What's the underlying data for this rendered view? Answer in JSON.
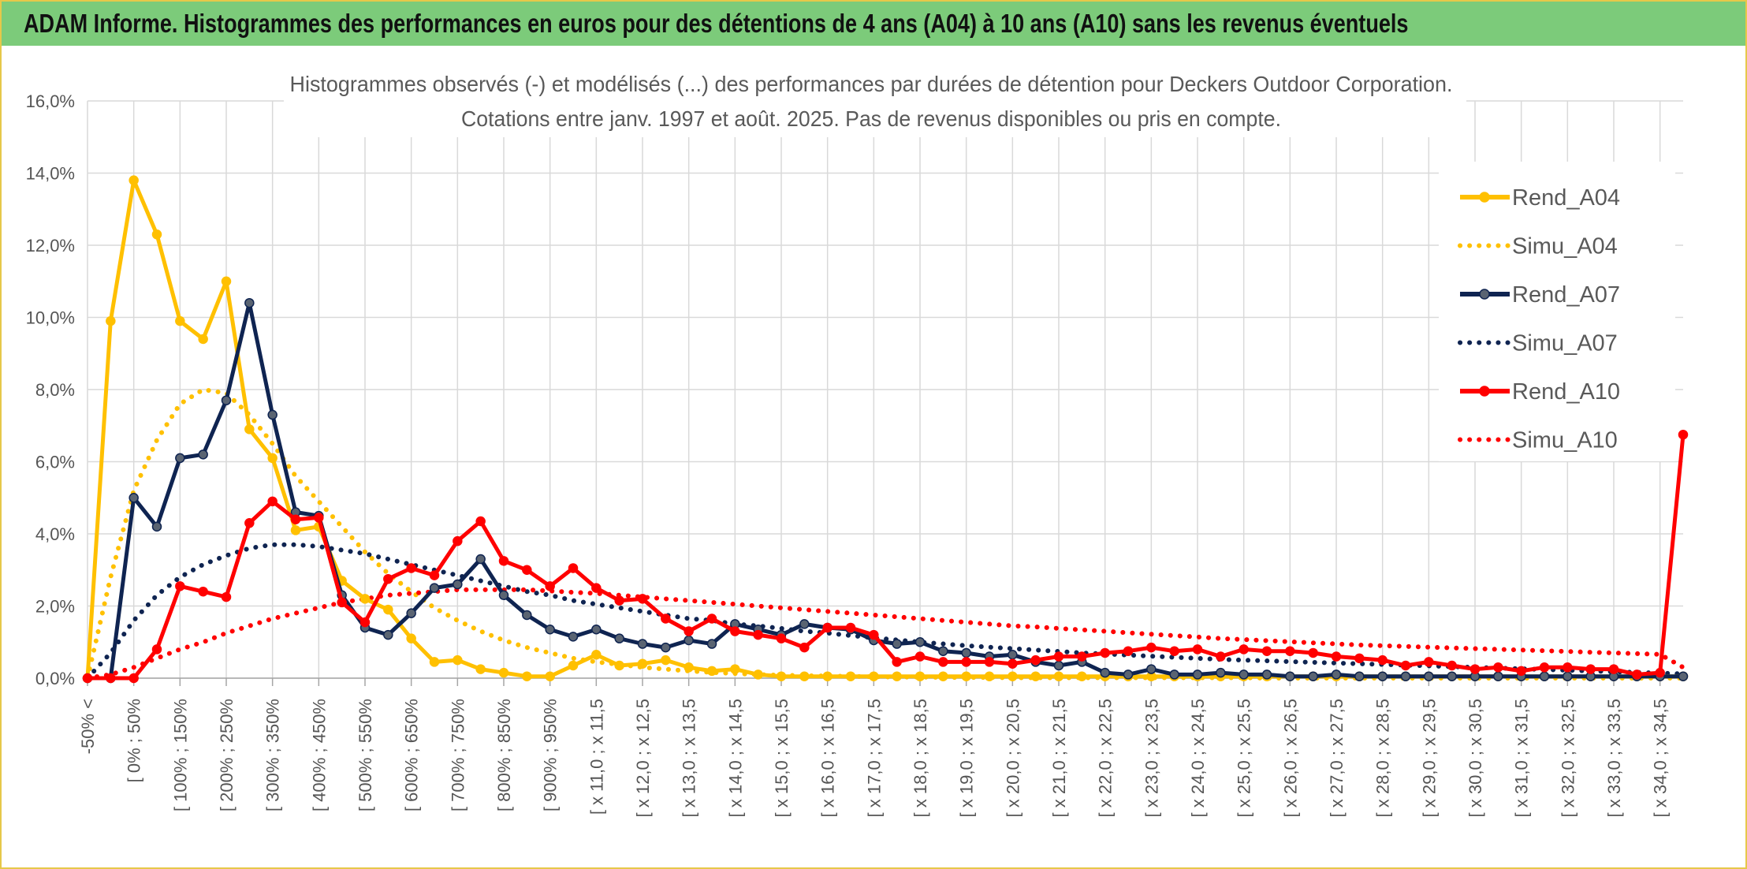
{
  "header": {
    "title": "ADAM Informe. Histogrammes des performances en euros pour des détentions de 4 ans (A04) à 10 ans (A10) sans les revenus éventuels"
  },
  "colors": {
    "header_bg": "#7ccb7a",
    "frame": "#e6c84a",
    "A04": "#ffc000",
    "A07": "#0f2451",
    "A10": "#ff0000",
    "grid": "#d9d9d9"
  },
  "chart_data": {
    "type": "line",
    "title": "Histogrammes observés (-) et modélisés (...) des performances par durées de détention pour Deckers Outdoor Corporation.",
    "subtitle": "Cotations entre janv. 1997 et août. 2025. Pas de revenus disponibles ou pris en compte.",
    "ylim": [
      0,
      16
    ],
    "y_ticks": [
      "0,0%",
      "2,0%",
      "4,0%",
      "6,0%",
      "8,0%",
      "10,0%",
      "12,0%",
      "14,0%",
      "16,0%"
    ],
    "y_unit": "%",
    "legend_position": "right",
    "x_labels": [
      "-50% <",
      "[ 0% ; 50%",
      "[ 100% ; 150%",
      "[ 200% ; 250%",
      "[ 300% ; 350%",
      "[ 400% ; 450%",
      "[ 500% ; 550%",
      "[ 600% ; 650%",
      "[ 700% ; 750%",
      "[ 800% ; 850%",
      "[ 900% ; 950%",
      "[ x 11,0 ; x 11,5",
      "[ x 12,0 ; x 12,5",
      "[ x 13,0 ; x 13,5",
      "[ x 14,0 ; x 14,5",
      "[ x 15,0 ; x 15,5",
      "[ x 16,0 ; x 16,5",
      "[ x 17,0 ; x 17,5",
      "[ x 18,0 ; x 18,5",
      "[ x 19,0 ; x 19,5",
      "[ x 20,0 ; x 20,5",
      "[ x 21,0 ; x 21,5",
      "[ x 22,0 ; x 22,5",
      "[ x 23,0 ; x 23,5",
      "[ x 24,0 ; x 24,5",
      "[ x 25,0 ; x 25,5",
      "[ x 26,0 ; x 26,5",
      "[ x 27,0 ; x 27,5",
      "[ x 28,0 ; x 28,5",
      "[ x 29,0 ; x 29,5",
      "[ x 30,0 ; x 30,5",
      "[ x 31,0 ; x 31,5",
      "[ x 32,0 ; x 32,5",
      "[ x 33,0 ; x 33,5",
      "[ x 34,0 ; x 34,5"
    ],
    "series": [
      {
        "name": "Rend_A04",
        "style": "solid",
        "color": "#ffc000",
        "marker": "circle",
        "values": [
          0.0,
          9.9,
          13.8,
          12.3,
          9.9,
          9.4,
          11.0,
          6.9,
          6.1,
          4.1,
          4.2,
          2.7,
          2.2,
          1.9,
          1.1,
          0.45,
          0.5,
          0.25,
          0.15,
          0.05,
          0.05,
          0.35,
          0.65,
          0.35,
          0.4,
          0.5,
          0.3,
          0.2,
          0.25,
          0.1,
          0.05,
          0.05,
          0.05,
          0.05,
          0.05,
          0.05,
          0.05,
          0.05,
          0.05,
          0.05,
          0.05,
          0.05,
          0.05,
          0.05,
          0.05,
          0.05,
          0.05,
          0.05,
          0.05,
          0.05,
          0.05,
          0.05,
          0.05,
          0.05,
          0.05,
          0.05,
          0.05,
          0.05,
          0.05,
          0.05,
          0.05,
          0.05,
          0.05,
          0.05,
          0.05,
          0.05,
          0.05,
          0.05,
          0.05,
          0.05
        ]
      },
      {
        "name": "Simu_A04",
        "style": "dotted",
        "color": "#ffc000",
        "values": [
          0.0,
          2.8,
          5.2,
          6.6,
          7.6,
          8.0,
          7.9,
          7.3,
          6.5,
          5.6,
          4.9,
          4.2,
          3.5,
          2.9,
          2.4,
          1.95,
          1.6,
          1.3,
          1.05,
          0.85,
          0.7,
          0.55,
          0.45,
          0.38,
          0.3,
          0.25,
          0.2,
          0.16,
          0.13,
          0.1,
          0.08,
          0.07,
          0.06,
          0.05,
          0.04,
          0.03,
          0.03,
          0.02,
          0.02,
          0.02,
          0.01,
          0.01,
          0.01,
          0.01,
          0.01,
          0.01,
          0.01,
          0.01,
          0.01,
          0.01,
          0.01,
          0.0,
          0.0,
          0.0,
          0.0,
          0.0,
          0.0,
          0.0,
          0.0,
          0.0,
          0.0,
          0.0,
          0.0,
          0.0,
          0.0,
          0.0,
          0.0,
          0.0,
          0.0,
          0.0
        ]
      },
      {
        "name": "Rend_A07",
        "style": "solid",
        "color": "#0f2451",
        "marker": "circle",
        "values": [
          0.0,
          0.0,
          5.0,
          4.2,
          6.1,
          6.2,
          7.7,
          10.4,
          7.3,
          4.6,
          4.5,
          2.3,
          1.4,
          1.2,
          1.8,
          2.5,
          2.6,
          3.3,
          2.3,
          1.75,
          1.35,
          1.15,
          1.35,
          1.1,
          0.95,
          0.85,
          1.05,
          0.95,
          1.5,
          1.35,
          1.2,
          1.5,
          1.4,
          1.35,
          1.05,
          0.95,
          1.0,
          0.75,
          0.7,
          0.6,
          0.65,
          0.45,
          0.35,
          0.45,
          0.15,
          0.1,
          0.25,
          0.1,
          0.1,
          0.15,
          0.1,
          0.1,
          0.05,
          0.05,
          0.1,
          0.05,
          0.05,
          0.05,
          0.05,
          0.05,
          0.05,
          0.05,
          0.05,
          0.05,
          0.05,
          0.05,
          0.05,
          0.05,
          0.05,
          0.05
        ]
      },
      {
        "name": "Simu_A07",
        "style": "dotted",
        "color": "#0f2451",
        "values": [
          0.0,
          0.7,
          1.6,
          2.3,
          2.8,
          3.15,
          3.4,
          3.6,
          3.7,
          3.7,
          3.65,
          3.55,
          3.45,
          3.3,
          3.15,
          3.0,
          2.85,
          2.7,
          2.55,
          2.4,
          2.3,
          2.15,
          2.05,
          1.95,
          1.85,
          1.75,
          1.65,
          1.6,
          1.5,
          1.45,
          1.38,
          1.3,
          1.25,
          1.18,
          1.12,
          1.06,
          1.0,
          0.95,
          0.9,
          0.86,
          0.82,
          0.78,
          0.74,
          0.7,
          0.67,
          0.64,
          0.61,
          0.58,
          0.55,
          0.52,
          0.5,
          0.48,
          0.46,
          0.44,
          0.42,
          0.4,
          0.38,
          0.36,
          0.34,
          0.32,
          0.3,
          0.28,
          0.26,
          0.24,
          0.22,
          0.2,
          0.18,
          0.16,
          0.14,
          0.12
        ]
      },
      {
        "name": "Rend_A10",
        "style": "solid",
        "color": "#ff0000",
        "marker": "circle",
        "values": [
          0.0,
          0.0,
          0.0,
          0.8,
          2.55,
          2.4,
          2.25,
          4.3,
          4.9,
          4.4,
          4.45,
          2.1,
          1.55,
          2.75,
          3.05,
          2.85,
          3.8,
          4.35,
          3.25,
          3.0,
          2.55,
          3.05,
          2.5,
          2.15,
          2.2,
          1.65,
          1.3,
          1.65,
          1.3,
          1.2,
          1.1,
          0.85,
          1.4,
          1.4,
          1.2,
          0.45,
          0.6,
          0.45,
          0.45,
          0.45,
          0.4,
          0.5,
          0.6,
          0.6,
          0.7,
          0.75,
          0.85,
          0.75,
          0.8,
          0.6,
          0.8,
          0.75,
          0.75,
          0.7,
          0.6,
          0.55,
          0.5,
          0.35,
          0.45,
          0.35,
          0.25,
          0.3,
          0.2,
          0.3,
          0.3,
          0.25,
          0.25,
          0.1,
          0.15,
          6.75
        ]
      },
      {
        "name": "Simu_A10",
        "style": "dotted",
        "color": "#ff0000",
        "values": [
          0.0,
          0.1,
          0.3,
          0.55,
          0.8,
          1.0,
          1.25,
          1.45,
          1.65,
          1.8,
          1.95,
          2.1,
          2.2,
          2.3,
          2.35,
          2.4,
          2.45,
          2.45,
          2.45,
          2.45,
          2.42,
          2.38,
          2.35,
          2.3,
          2.25,
          2.2,
          2.15,
          2.1,
          2.05,
          2.0,
          1.95,
          1.9,
          1.85,
          1.8,
          1.75,
          1.7,
          1.65,
          1.6,
          1.55,
          1.5,
          1.45,
          1.42,
          1.38,
          1.34,
          1.3,
          1.26,
          1.22,
          1.18,
          1.14,
          1.1,
          1.07,
          1.04,
          1.01,
          0.98,
          0.95,
          0.92,
          0.9,
          0.88,
          0.86,
          0.84,
          0.82,
          0.8,
          0.78,
          0.76,
          0.74,
          0.72,
          0.7,
          0.68,
          0.66,
          0.3
        ]
      }
    ]
  }
}
